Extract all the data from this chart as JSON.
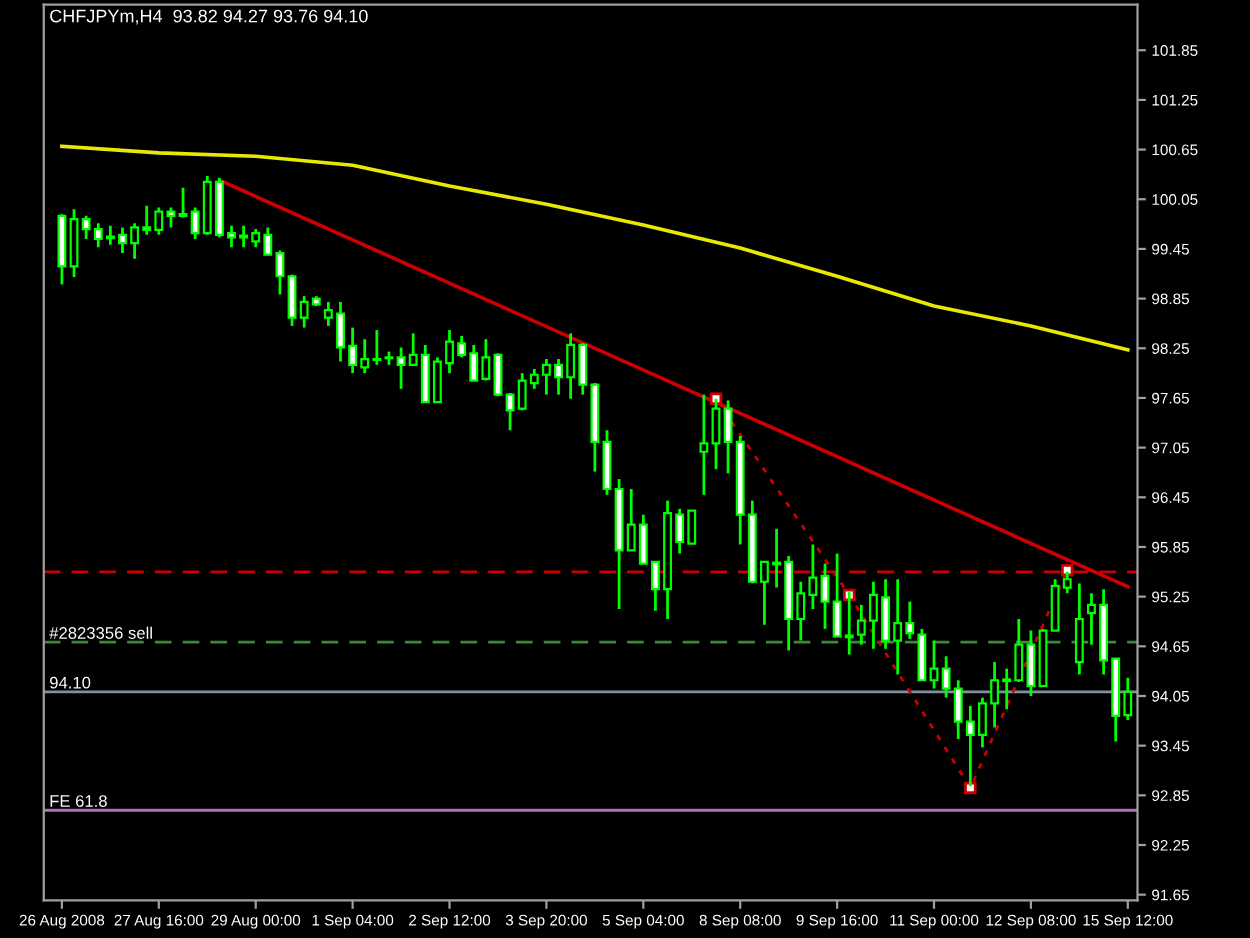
{
  "chart_data": {
    "type": "candlestick",
    "title": "CHFJPYm,H4  93.82 94.27 93.76 94.10",
    "categories": [
      "26 Aug 2008",
      null,
      null,
      null,
      null,
      null,
      null,
      null,
      "27 Aug 16:00",
      null,
      null,
      null,
      null,
      null,
      null,
      null,
      "29 Aug 00:00",
      null,
      null,
      null,
      null,
      null,
      null,
      null,
      "1 Sep 04:00",
      null,
      null,
      null,
      null,
      null,
      null,
      null,
      "2 Sep 12:00",
      null,
      null,
      null,
      null,
      null,
      null,
      null,
      "3 Sep 20:00",
      null,
      null,
      null,
      null,
      null,
      null,
      null,
      "5 Sep 04:00",
      null,
      null,
      null,
      null,
      null,
      null,
      null,
      "8 Sep 08:00",
      null,
      null,
      null,
      null,
      null,
      null,
      null,
      "9 Sep 16:00",
      null,
      null,
      null,
      null,
      null,
      null,
      null,
      "11 Sep 00:00",
      null,
      null,
      null,
      null,
      null,
      null,
      null,
      "12 Sep 08:00",
      null,
      null,
      null,
      null,
      null,
      null,
      null,
      "15 Sep 12:00"
    ],
    "ohlc": [
      [
        99.85,
        99.87,
        99.02,
        99.24
      ],
      [
        99.24,
        99.93,
        99.11,
        99.81
      ],
      [
        99.81,
        99.85,
        99.57,
        99.69
      ],
      [
        99.69,
        99.76,
        99.47,
        99.57
      ],
      [
        99.6,
        99.73,
        99.5,
        99.58
      ],
      [
        99.62,
        99.71,
        99.4,
        99.52
      ],
      [
        99.52,
        99.76,
        99.33,
        99.71
      ],
      [
        99.71,
        99.97,
        99.62,
        99.68
      ],
      [
        99.68,
        99.95,
        99.62,
        99.9
      ],
      [
        99.9,
        99.95,
        99.71,
        99.85
      ],
      [
        99.87,
        100.19,
        99.83,
        99.85
      ],
      [
        99.9,
        99.95,
        99.57,
        99.64
      ],
      [
        99.64,
        100.33,
        99.62,
        100.26
      ],
      [
        100.26,
        100.31,
        99.59,
        99.62
      ],
      [
        99.64,
        99.73,
        99.47,
        99.59
      ],
      [
        99.61,
        99.73,
        99.47,
        99.59
      ],
      [
        99.54,
        99.69,
        99.47,
        99.64
      ],
      [
        99.62,
        99.71,
        99.38,
        99.38
      ],
      [
        99.4,
        99.43,
        98.9,
        99.12
      ],
      [
        99.12,
        99.14,
        98.52,
        98.62
      ],
      [
        98.62,
        98.88,
        98.5,
        98.81
      ],
      [
        98.85,
        98.88,
        98.76,
        98.78
      ],
      [
        98.62,
        98.81,
        98.52,
        98.71
      ],
      [
        98.67,
        98.81,
        98.09,
        98.26
      ],
      [
        98.28,
        98.5,
        97.95,
        98.05
      ],
      [
        98.02,
        98.36,
        97.95,
        98.12
      ],
      [
        98.12,
        98.47,
        98.05,
        98.11
      ],
      [
        98.14,
        98.21,
        98.05,
        98.13
      ],
      [
        98.14,
        98.26,
        97.76,
        98.05
      ],
      [
        98.05,
        98.43,
        98.05,
        98.17
      ],
      [
        98.17,
        98.29,
        97.6,
        97.6
      ],
      [
        97.6,
        98.14,
        97.6,
        98.09
      ],
      [
        98.07,
        98.47,
        97.95,
        98.33
      ],
      [
        98.31,
        98.4,
        98.14,
        98.17
      ],
      [
        98.19,
        98.29,
        97.86,
        97.86
      ],
      [
        97.88,
        98.36,
        97.86,
        98.14
      ],
      [
        98.17,
        98.19,
        97.67,
        97.69
      ],
      [
        97.69,
        97.71,
        97.26,
        97.5
      ],
      [
        97.52,
        97.95,
        97.5,
        97.86
      ],
      [
        97.83,
        98.0,
        97.76,
        97.93
      ],
      [
        97.93,
        98.12,
        97.69,
        98.05
      ],
      [
        98.05,
        98.12,
        97.69,
        97.9
      ],
      [
        97.9,
        98.43,
        97.64,
        98.29
      ],
      [
        98.29,
        98.31,
        97.69,
        97.81
      ],
      [
        97.81,
        97.83,
        96.76,
        97.12
      ],
      [
        97.12,
        97.26,
        96.48,
        96.55
      ],
      [
        96.55,
        96.67,
        95.1,
        95.81
      ],
      [
        95.81,
        96.55,
        95.81,
        96.12
      ],
      [
        96.12,
        96.24,
        95.65,
        95.65
      ],
      [
        95.67,
        95.67,
        95.08,
        95.34
      ],
      [
        95.34,
        96.41,
        94.98,
        96.26
      ],
      [
        96.24,
        96.31,
        95.77,
        95.91
      ],
      [
        95.89,
        96.29,
        95.89,
        96.29
      ],
      [
        97.0,
        97.69,
        96.48,
        97.1
      ],
      [
        97.1,
        97.64,
        96.79,
        97.52
      ],
      [
        97.52,
        97.62,
        96.74,
        97.12
      ],
      [
        97.12,
        97.19,
        95.88,
        96.24
      ],
      [
        96.24,
        96.41,
        95.41,
        95.43
      ],
      [
        95.43,
        95.67,
        94.91,
        95.67
      ],
      [
        95.66,
        96.07,
        95.36,
        95.64
      ],
      [
        95.67,
        95.74,
        94.6,
        94.98
      ],
      [
        94.98,
        95.43,
        94.72,
        95.29
      ],
      [
        95.27,
        95.88,
        95.1,
        95.48
      ],
      [
        95.5,
        95.65,
        94.86,
        95.19
      ],
      [
        95.19,
        95.77,
        94.77,
        94.77
      ],
      [
        94.76,
        95.31,
        94.55,
        94.78
      ],
      [
        94.79,
        95.15,
        94.67,
        94.96
      ],
      [
        94.96,
        95.43,
        94.62,
        95.27
      ],
      [
        95.24,
        95.46,
        94.62,
        94.72
      ],
      [
        94.72,
        95.46,
        94.31,
        94.93
      ],
      [
        94.93,
        95.19,
        94.74,
        94.81
      ],
      [
        94.79,
        94.86,
        94.24,
        94.24
      ],
      [
        94.24,
        94.72,
        94.14,
        94.38
      ],
      [
        94.38,
        94.53,
        94.03,
        94.14
      ],
      [
        94.14,
        94.24,
        93.53,
        93.74
      ],
      [
        93.74,
        93.93,
        92.96,
        93.58
      ],
      [
        93.58,
        94.03,
        93.43,
        93.96
      ],
      [
        93.96,
        94.46,
        93.67,
        94.24
      ],
      [
        94.23,
        94.38,
        93.89,
        94.25
      ],
      [
        94.24,
        94.98,
        94.22,
        94.67
      ],
      [
        94.67,
        94.84,
        94.05,
        94.17
      ],
      [
        94.17,
        94.86,
        94.17,
        94.84
      ],
      [
        94.84,
        95.46,
        94.84,
        95.38
      ],
      [
        95.36,
        95.55,
        95.29,
        95.46
      ],
      [
        94.46,
        95.41,
        94.31,
        94.98
      ],
      [
        95.05,
        95.29,
        94.67,
        95.15
      ],
      [
        95.15,
        95.34,
        94.31,
        94.48
      ],
      [
        94.5,
        94.5,
        93.5,
        93.81
      ],
      [
        93.82,
        94.27,
        93.76,
        94.1
      ]
    ],
    "series": [
      {
        "type": "line",
        "color": "#e8e800",
        "line_style": "solid",
        "marker": "none",
        "values": [
          100.69,
          null,
          null,
          null,
          null,
          null,
          null,
          null,
          100.61,
          null,
          null,
          null,
          null,
          null,
          null,
          null,
          100.57,
          null,
          null,
          null,
          null,
          null,
          null,
          null,
          100.46,
          null,
          null,
          null,
          null,
          null,
          null,
          null,
          100.21,
          null,
          null,
          null,
          null,
          null,
          null,
          null,
          99.99,
          null,
          null,
          null,
          null,
          null,
          null,
          null,
          99.74,
          null,
          null,
          null,
          null,
          null,
          null,
          null,
          99.46,
          null,
          null,
          null,
          null,
          null,
          null,
          null,
          99.12,
          null,
          null,
          null,
          null,
          null,
          null,
          null,
          98.76,
          null,
          null,
          null,
          null,
          null,
          null,
          null,
          98.52,
          null,
          null,
          null,
          null,
          null,
          null,
          null,
          98.23
        ]
      },
      {
        "type": "line",
        "color": "#cc0000",
        "line_style": "solid",
        "marker": "none",
        "values": [
          null,
          null,
          null,
          null,
          null,
          null,
          null,
          null,
          null,
          null,
          null,
          null,
          null,
          100.28,
          null,
          null,
          null,
          null,
          null,
          null,
          null,
          null,
          null,
          null,
          null,
          null,
          null,
          null,
          null,
          null,
          null,
          null,
          null,
          null,
          null,
          null,
          null,
          null,
          null,
          null,
          null,
          null,
          null,
          null,
          null,
          null,
          null,
          null,
          null,
          null,
          null,
          null,
          null,
          null,
          null,
          null,
          null,
          null,
          null,
          null,
          null,
          null,
          null,
          null,
          null,
          null,
          null,
          null,
          null,
          null,
          null,
          null,
          null,
          null,
          null,
          null,
          null,
          null,
          null,
          null,
          null,
          null,
          null,
          null,
          null,
          null,
          null,
          null,
          95.37
        ]
      },
      {
        "type": "line",
        "color": "#cc0000",
        "line_style": "dotted",
        "marker": "square",
        "values": [
          null,
          null,
          null,
          null,
          null,
          null,
          null,
          null,
          null,
          null,
          null,
          null,
          null,
          null,
          null,
          null,
          null,
          null,
          null,
          null,
          null,
          null,
          null,
          null,
          null,
          null,
          null,
          null,
          null,
          null,
          null,
          null,
          null,
          null,
          null,
          null,
          null,
          null,
          null,
          null,
          null,
          null,
          null,
          null,
          null,
          null,
          null,
          null,
          null,
          null,
          null,
          null,
          null,
          null,
          97.64,
          null,
          null,
          null,
          null,
          null,
          null,
          null,
          null,
          null,
          null,
          95.27,
          null,
          null,
          null,
          null,
          null,
          null,
          null,
          null,
          null,
          92.94,
          null,
          null,
          null,
          null,
          null,
          null,
          null,
          95.57,
          null,
          null,
          null,
          null,
          null
        ]
      }
    ],
    "ref_lines": [
      {
        "axis": "y",
        "value": 95.55,
        "color": "#cc0000",
        "line_style": "dashed"
      },
      {
        "axis": "y",
        "value": 94.7,
        "label": "#2823356 sell",
        "color": "#3a8a3a",
        "line_style": "dashed"
      },
      {
        "axis": "y",
        "value": 94.1,
        "label": "94.10",
        "color": "#8090a0",
        "line_style": "solid"
      },
      {
        "axis": "y",
        "value": 92.67,
        "label": "FE 61.8",
        "color": "#b070c0",
        "line_style": "solid"
      }
    ],
    "ylim": [
      91.58,
      102.4
    ],
    "yticks": [
      91.65,
      92.25,
      92.85,
      93.45,
      94.05,
      94.65,
      95.25,
      95.85,
      96.45,
      97.05,
      97.65,
      98.25,
      98.85,
      99.45,
      100.05,
      100.65,
      101.25,
      101.85
    ],
    "grid": false,
    "legend": false
  }
}
